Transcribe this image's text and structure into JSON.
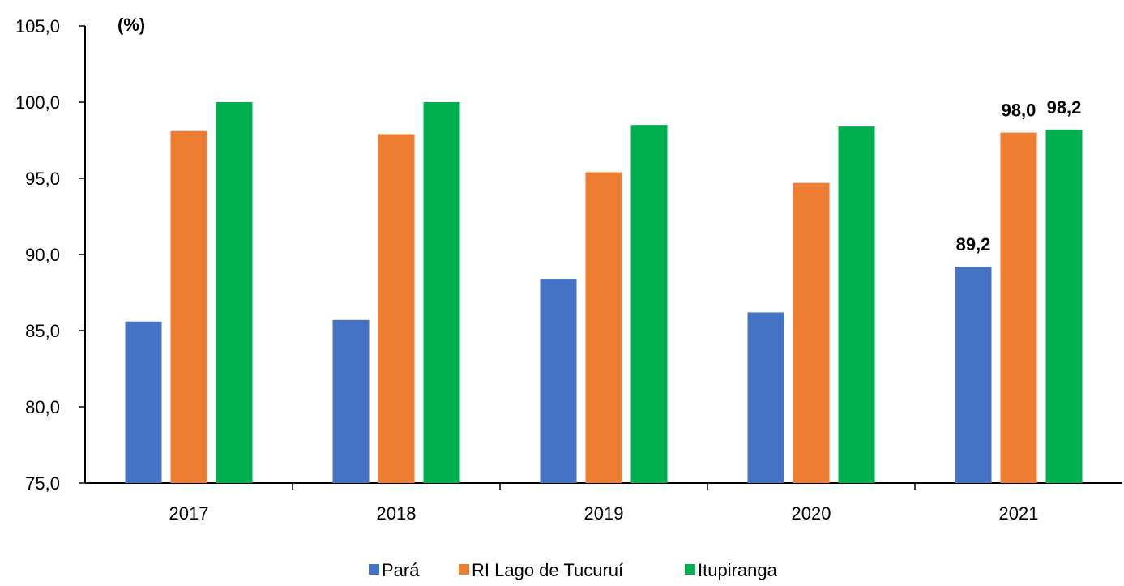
{
  "chart_data": {
    "type": "bar",
    "unit_label": "(%)",
    "categories": [
      "2017",
      "2018",
      "2019",
      "2020",
      "2021"
    ],
    "ylim": [
      75,
      105
    ],
    "yticks": [
      "75,0",
      "80,0",
      "85,0",
      "90,0",
      "95,0",
      "100,0",
      "105,0"
    ],
    "ytick_values": [
      75,
      80,
      85,
      90,
      95,
      100,
      105
    ],
    "grid": false,
    "legend_position": "bottom",
    "series": [
      {
        "name": "Pará",
        "color": "#4472c4",
        "values": [
          85.6,
          85.7,
          88.4,
          86.2,
          89.2
        ]
      },
      {
        "name": "RI Lago de Tucuruí",
        "color": "#ed7d31",
        "values": [
          98.1,
          97.9,
          95.4,
          94.7,
          98.0
        ]
      },
      {
        "name": "Itupiranga",
        "color": "#00b050",
        "values": [
          100.0,
          100.0,
          98.5,
          98.4,
          98.2
        ]
      }
    ],
    "data_labels": [
      {
        "category_index": 4,
        "series_index": 0,
        "text": "89,2"
      },
      {
        "category_index": 4,
        "series_index": 1,
        "text": "98,0"
      },
      {
        "category_index": 4,
        "series_index": 2,
        "text": "98,2"
      }
    ]
  }
}
